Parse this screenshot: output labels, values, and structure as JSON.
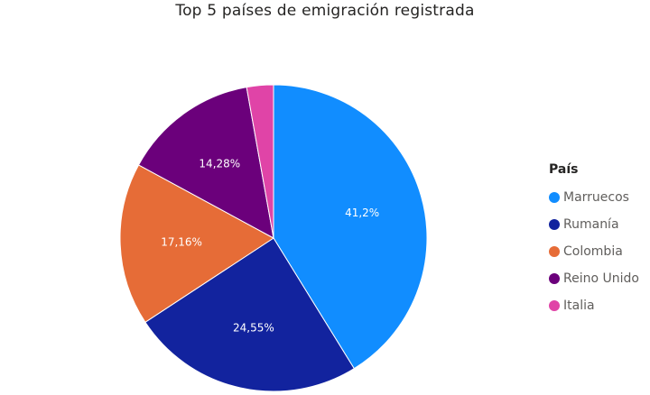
{
  "chart_data": {
    "type": "pie",
    "title": "Top 5 países de emigración registrada",
    "legend_title": "País",
    "legend_position": "right",
    "categories": [
      "Marruecos",
      "Rumanía",
      "Colombia",
      "Reino Unido",
      "Italia"
    ],
    "values": [
      41.2,
      24.55,
      17.16,
      14.28,
      2.81
    ],
    "labels": [
      "41,2%",
      "24,55%",
      "17,16%",
      "14,28%",
      ""
    ],
    "colors": [
      "#118DFF",
      "#12239E",
      "#E66C37",
      "#6B007B",
      "#E044A7"
    ]
  }
}
